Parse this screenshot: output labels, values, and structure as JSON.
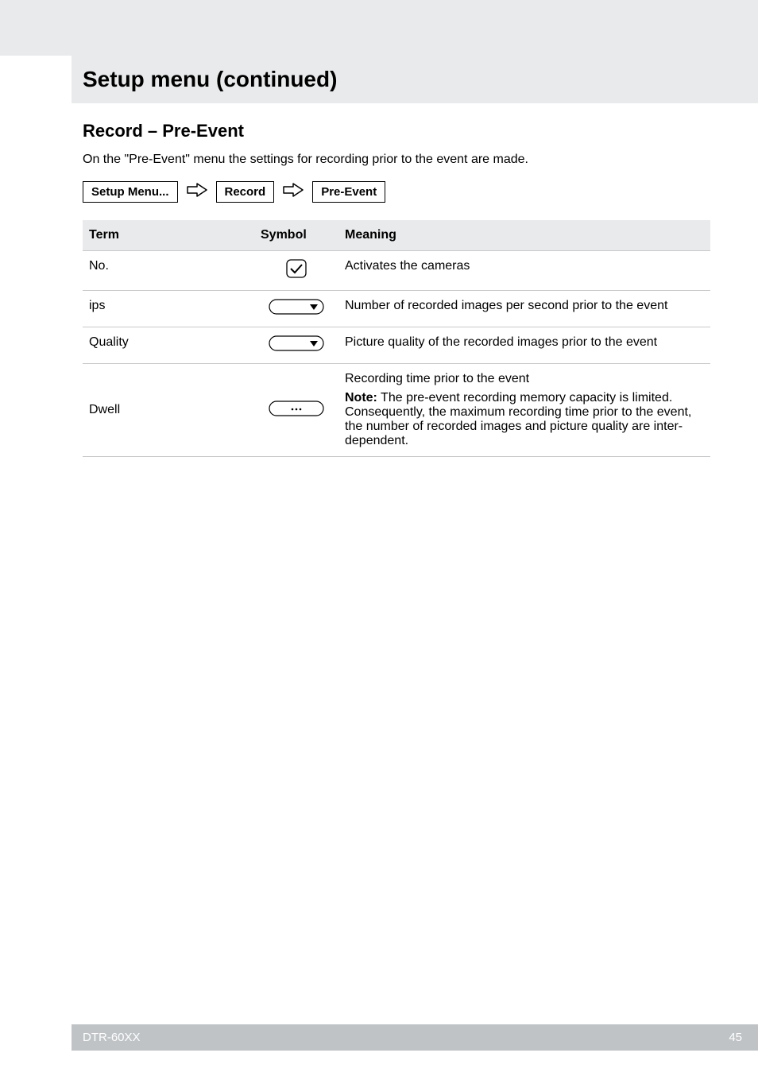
{
  "page_title": "Setup menu (continued)",
  "section_heading": "Record – Pre-Event",
  "intro_text": "On the \"Pre-Event\" menu the settings for recording prior to the event are made.",
  "breadcrumb": {
    "items": [
      "Setup Menu...",
      "Record",
      "Pre-Event"
    ]
  },
  "table": {
    "headers": {
      "term": "Term",
      "symbol": "Symbol",
      "meaning": "Meaning"
    },
    "rows": [
      {
        "term": "No.",
        "symbol_type": "checkbox",
        "meaning": "Activates the cameras"
      },
      {
        "term": "ips",
        "symbol_type": "dropdown",
        "meaning": "Number of recorded images per second prior to the event"
      },
      {
        "term": "Quality",
        "symbol_type": "dropdown",
        "meaning": "Picture quality of the recorded images prior to the event"
      },
      {
        "term": "Dwell",
        "symbol_type": "ellipsis",
        "meaning_line1": "Recording time prior to the event",
        "meaning_note_label": "Note:",
        "meaning_note_text": " The pre-event recording memory capacity is limited. Consequently, the maximum recording time prior to the event, the number of recorded images and picture quality are inter-dependent."
      }
    ]
  },
  "footer": {
    "model": "DTR-60XX",
    "page_number": "45"
  },
  "svg": {
    "checkbox": "<svg width='26' height='24' viewBox='0 0 26 24'><rect x='1' y='1' width='24' height='22' rx='5' ry='5' fill='none' stroke='#000' stroke-width='1.3'/><path d='M6 12 L11 17 L20 7' fill='none' stroke='#000' stroke-width='2'/></svg>",
    "dropdown": "<svg width='70' height='20' viewBox='0 0 70 20'><rect x='1' y='1' width='68' height='18' rx='9' ry='9' fill='none' stroke='#000' stroke-width='1.2'/><path d='M52 7 L62 7 L57 14 Z' fill='#000'/></svg>",
    "ellipsis": "<svg width='70' height='20' viewBox='0 0 70 20'><rect x='1' y='1' width='68' height='18' rx='9' ry='9' fill='none' stroke='#000' stroke-width='1.2'/><circle cx='30' cy='11' r='1.3' fill='#000'/><circle cx='35' cy='11' r='1.3' fill='#000'/><circle cx='40' cy='11' r='1.3' fill='#000'/></svg>",
    "arrow": "<svg class='arrow-svg' viewBox='0 0 28 20'><path d='M2 6 H14 V2 L26 10 L14 18 V14 H2 Z' fill='none' stroke='#000' stroke-width='1.5' stroke-linejoin='round'/></svg>"
  }
}
